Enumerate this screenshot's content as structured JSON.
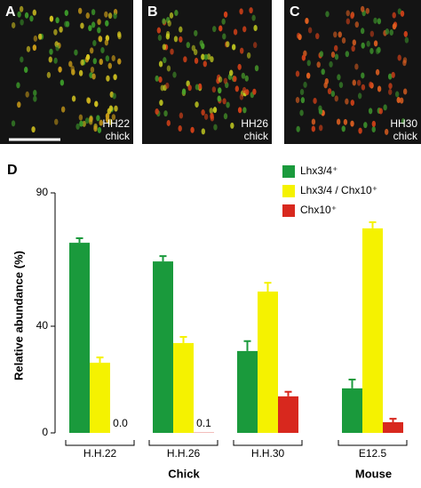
{
  "panels": [
    {
      "label": "A",
      "caption": [
        "HH22",
        "chick"
      ]
    },
    {
      "label": "B",
      "caption": [
        "HH26",
        "chick"
      ]
    },
    {
      "label": "C",
      "caption": [
        "HH30",
        "chick"
      ]
    }
  ],
  "chart_data": {
    "type": "bar",
    "panel_label": "D",
    "y_label": "Relative abundance (%)",
    "categories": [
      "H.H.22",
      "H.H.26",
      "H.H.30",
      "E12.5"
    ],
    "groups": [
      "Chick",
      "Mouse"
    ],
    "ylim": [
      0,
      90
    ],
    "yticks": [
      0,
      40,
      90
    ],
    "series": [
      {
        "name": "Lhx3/4⁺",
        "color": "#1a9a3c",
        "values": [
          71.3,
          64.3,
          30.7,
          16.7
        ],
        "errors": [
          1.7,
          2,
          3.7,
          3.3
        ]
      },
      {
        "name": "Lhx3/4 / Chx10⁺",
        "color": "#f5f200",
        "values": [
          26.3,
          33.7,
          53,
          76.7
        ],
        "errors": [
          2,
          2.3,
          3.3,
          2.3
        ]
      },
      {
        "name": "Chx10⁺",
        "color": "#d8281e",
        "values": [
          0,
          0.1,
          13.7,
          4
        ],
        "errors": [
          null,
          null,
          1.7,
          1.3
        ],
        "value_labels": [
          "0.0",
          "0.1",
          null,
          null
        ]
      }
    ]
  }
}
